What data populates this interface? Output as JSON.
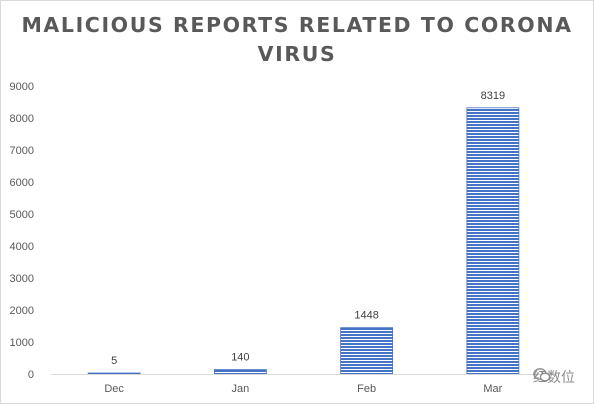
{
  "chart_data": {
    "type": "bar",
    "title": "MALICIOUS REPORTS RELATED TO CORONA VIRUS",
    "categories": [
      "Dec",
      "Jan",
      "Feb",
      "Mar"
    ],
    "values": [
      5,
      140,
      1448,
      8319
    ],
    "data_labels": [
      "5",
      "140",
      "1448",
      "8319"
    ],
    "yticks": [
      0,
      1000,
      2000,
      3000,
      4000,
      5000,
      6000,
      7000,
      8000,
      9000
    ],
    "ylim": [
      0,
      9000
    ],
    "xlabel": "",
    "ylabel": "",
    "grid": false,
    "bar_color": "#4472c4",
    "bar_fill": "horizontal-stripes"
  },
  "watermark": {
    "text": "红数位",
    "icon": "wechat-icon"
  }
}
